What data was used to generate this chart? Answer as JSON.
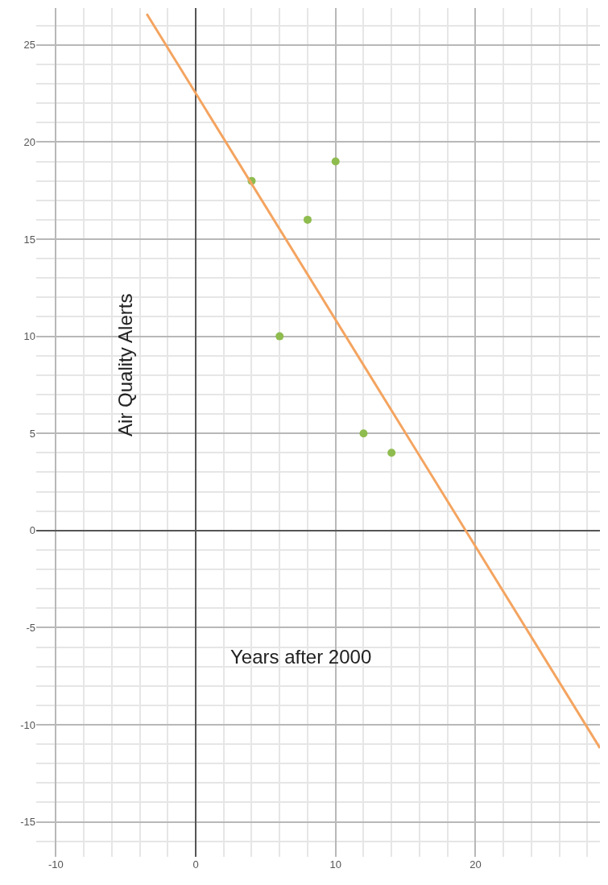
{
  "chart_data": {
    "type": "scatter",
    "xlabel": "Years after 2000",
    "ylabel": "Air Quality Alerts",
    "x": [
      4,
      6,
      8,
      10,
      12,
      14
    ],
    "series": [
      {
        "color": "#8fbc4f",
        "values": [
          18,
          10,
          16,
          19,
          5,
          4
        ],
        "marker": "circle"
      },
      {
        "type": "line",
        "color": "#f4a460",
        "x": [
          -3.5,
          28.9
        ],
        "values": [
          26.6,
          -11.2
        ],
        "line_style": "solid"
      }
    ],
    "xlim": [
      -11.4,
      28.9
    ],
    "ylim": [
      -16.8,
      26.9
    ],
    "xticks": [
      -10,
      0,
      10,
      20
    ],
    "yticks": [
      -15,
      -10,
      -5,
      0,
      5,
      10,
      15,
      20,
      25
    ],
    "grid": true
  }
}
